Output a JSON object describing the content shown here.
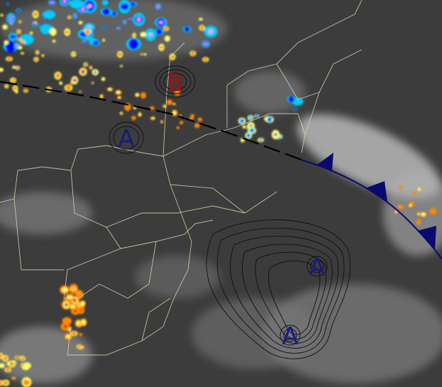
{
  "map": {
    "type": "satellite infrared weather chart",
    "colors": {
      "background": "#3c3c3c",
      "cloud": "#bdbdbd",
      "borders": "#d8d8b0",
      "front": "#0a0a6e",
      "trough": "#000000",
      "isobar": "#111111",
      "high_label": "#1a1a80",
      "low_label": "#a01010",
      "convection_scale": [
        "#0000ff",
        "#ff99ff",
        "#00ccff",
        "#ffff66",
        "#ff8800",
        "#cc0000"
      ]
    },
    "pressure_systems": [
      {
        "label": "B",
        "kind": "low"
      },
      {
        "label": "A",
        "kind": "high"
      },
      {
        "label": "A",
        "kind": "high"
      },
      {
        "label": "A",
        "kind": "high"
      }
    ],
    "features": [
      "trough-line",
      "cold-front",
      "isobars"
    ]
  }
}
